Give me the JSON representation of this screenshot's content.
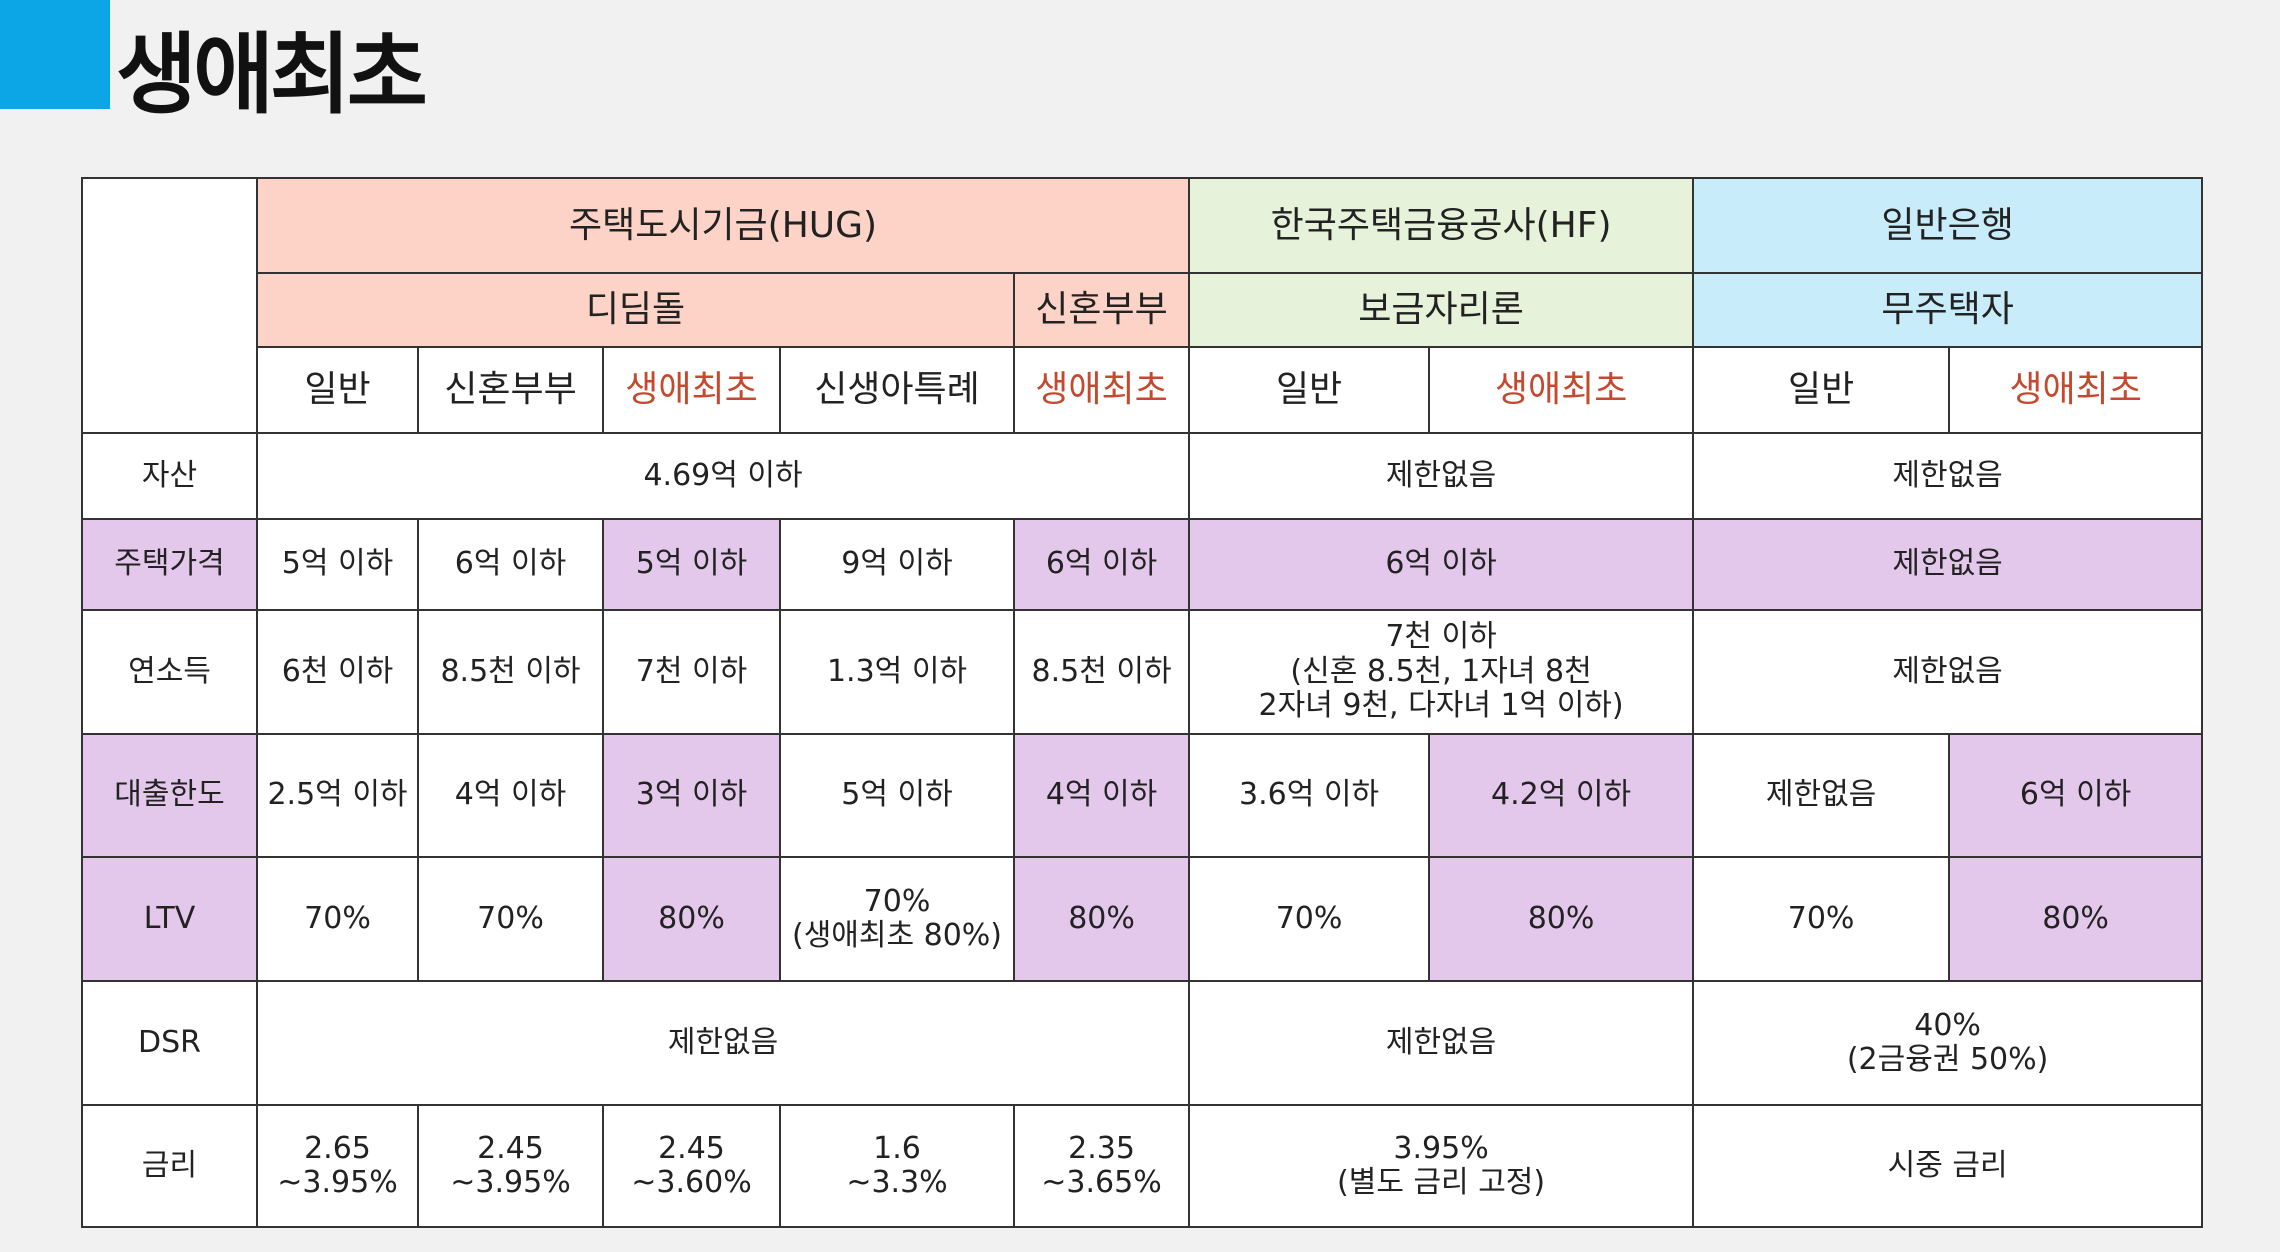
{
  "header": {
    "title": "생애최초"
  },
  "table": {
    "groups": [
      "주택도시기금(HUG)",
      "한국주택금융공사(HF)",
      "일반은행"
    ],
    "products": [
      "디딤돌",
      "신혼부부",
      "보금자리론",
      "무주택자"
    ],
    "columns": [
      "일반",
      "신혼부부",
      "생애최초",
      "신생아특례",
      "생애최초",
      "일반",
      "생애최초",
      "일반",
      "생애최초"
    ],
    "rows": [
      {
        "label": "자산",
        "cells": [
          "4.69억 이하",
          "제한없음",
          "제한없음"
        ]
      },
      {
        "label": "주택가격",
        "cells": [
          "5억 이하",
          "6억 이하",
          "5억 이하",
          "9억 이하",
          "6억 이하",
          "6억 이하",
          "제한없음"
        ]
      },
      {
        "label": "연소득",
        "cells": [
          "6천 이하",
          "8.5천 이하",
          "7천 이하",
          "1.3억 이하",
          "8.5천 이하",
          "7천 이하\n(신혼 8.5천, 1자녀 8천\n2자녀 9천, 다자녀 1억 이하)",
          "제한없음"
        ]
      },
      {
        "label": "대출한도",
        "cells": [
          "2.5억 이하",
          "4억 이하",
          "3억 이하",
          "5억 이하",
          "4억 이하",
          "3.6억 이하",
          "4.2억 이하",
          "제한없음",
          "6억 이하"
        ]
      },
      {
        "label": "LTV",
        "cells": [
          "70%",
          "70%",
          "80%",
          "70%\n(생애최초 80%)",
          "80%",
          "70%",
          "80%",
          "70%",
          "80%"
        ]
      },
      {
        "label": "DSR",
        "cells": [
          "제한없음",
          "제한없음",
          "40%\n(2금융권 50%)"
        ]
      },
      {
        "label": "금리",
        "cells": [
          "2.65\n~3.95%",
          "2.45\n~3.95%",
          "2.45\n~3.60%",
          "1.6\n~3.3%",
          "2.35\n~3.65%",
          "3.95%\n(별도 금리 고정)",
          "시중 금리"
        ]
      }
    ]
  }
}
